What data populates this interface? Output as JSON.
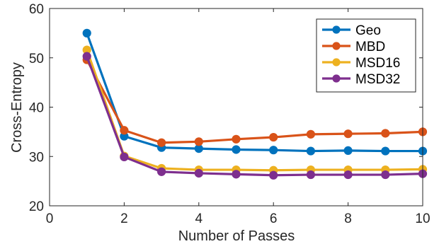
{
  "chart_data": {
    "type": "line",
    "xlabel": "Number of Passes",
    "ylabel": "Cross-Entropy",
    "xlim": [
      0,
      10
    ],
    "ylim": [
      20,
      60
    ],
    "xticks": [
      0,
      2,
      4,
      6,
      8,
      10
    ],
    "yticks": [
      20,
      30,
      40,
      50,
      60
    ],
    "grid": false,
    "legend_position": "top-right",
    "x": [
      1,
      2,
      3,
      4,
      5,
      6,
      7,
      8,
      9,
      10
    ],
    "series": [
      {
        "name": "Geo",
        "color": "#0072BD",
        "values": [
          55.0,
          34.1,
          31.8,
          31.6,
          31.4,
          31.3,
          31.1,
          31.2,
          31.1,
          31.1
        ]
      },
      {
        "name": "MBD",
        "color": "#D95319",
        "values": [
          49.6,
          35.3,
          32.8,
          33.0,
          33.5,
          33.9,
          34.5,
          34.6,
          34.7,
          35.0
        ]
      },
      {
        "name": "MSD16",
        "color": "#EDB120",
        "values": [
          51.6,
          30.1,
          27.6,
          27.3,
          27.3,
          27.2,
          27.3,
          27.3,
          27.3,
          27.4
        ]
      },
      {
        "name": "MSD32",
        "color": "#7E2F8E",
        "values": [
          50.3,
          29.9,
          26.9,
          26.6,
          26.4,
          26.2,
          26.3,
          26.3,
          26.3,
          26.5
        ]
      }
    ]
  }
}
